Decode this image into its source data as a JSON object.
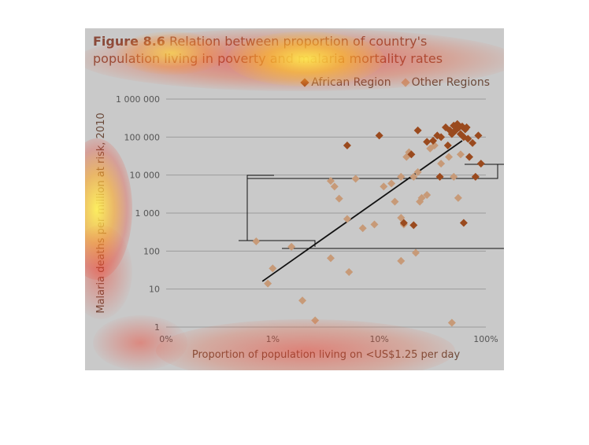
{
  "figure": {
    "number": "Figure 8.6",
    "title": "Relation between proportion of country's population living in poverty and malaria mortality rates"
  },
  "colors": {
    "african": "#9a4a1e",
    "other": "#c79a78",
    "trend": "#111111",
    "panel": "#c9c9c9",
    "grid": "#9c9c9c"
  },
  "chart_data": {
    "type": "scatter",
    "xlabel": "Proportion of population living on <US$1.25 per day",
    "ylabel": "Malaria deaths per million at risk, 2010",
    "x_scale": "log",
    "y_scale": "log",
    "xlim": [
      0.1,
      100
    ],
    "ylim": [
      1,
      1000000
    ],
    "x_ticks": [
      {
        "value": 0.1,
        "label": "0%"
      },
      {
        "value": 1,
        "label": "1%"
      },
      {
        "value": 10,
        "label": "10%"
      },
      {
        "value": 100,
        "label": "100%"
      }
    ],
    "y_ticks": [
      {
        "value": 1,
        "label": "1"
      },
      {
        "value": 10,
        "label": "10"
      },
      {
        "value": 100,
        "label": "100"
      },
      {
        "value": 1000,
        "label": "1 000"
      },
      {
        "value": 10000,
        "label": "10 000"
      },
      {
        "value": 100000,
        "label": "100 000"
      },
      {
        "value": 1000000,
        "label": "1 000 000"
      }
    ],
    "grid": true,
    "legend_position": "top-right",
    "series": [
      {
        "name": "African Region",
        "color": "#9a4a1e",
        "points": [
          [
            5,
            60000
          ],
          [
            10,
            110000
          ],
          [
            20,
            35000
          ],
          [
            23,
            150000
          ],
          [
            28,
            75000
          ],
          [
            32,
            80000
          ],
          [
            35,
            110000
          ],
          [
            38,
            100000
          ],
          [
            42,
            180000
          ],
          [
            44,
            60000
          ],
          [
            46,
            150000
          ],
          [
            48,
            120000
          ],
          [
            50,
            200000
          ],
          [
            52,
            150000
          ],
          [
            54,
            220000
          ],
          [
            56,
            180000
          ],
          [
            58,
            120000
          ],
          [
            60,
            190000
          ],
          [
            62,
            100000
          ],
          [
            64,
            160000
          ],
          [
            66,
            180000
          ],
          [
            68,
            90000
          ],
          [
            70,
            30000
          ],
          [
            75,
            70000
          ],
          [
            80,
            9000
          ],
          [
            85,
            110000
          ],
          [
            90,
            20000
          ],
          [
            62,
            550
          ],
          [
            37,
            9000
          ],
          [
            17,
            550
          ],
          [
            21,
            480
          ]
        ]
      },
      {
        "name": "Other Regions",
        "color": "#c79a78",
        "points": [
          [
            0.7,
            180
          ],
          [
            0.9,
            14
          ],
          [
            1.0,
            35
          ],
          [
            1.5,
            130
          ],
          [
            1.9,
            5
          ],
          [
            2.5,
            1.5
          ],
          [
            3.5,
            7000
          ],
          [
            3.5,
            65
          ],
          [
            3.8,
            5000
          ],
          [
            4.2,
            2400
          ],
          [
            5.0,
            700
          ],
          [
            5.2,
            28
          ],
          [
            6.0,
            8000
          ],
          [
            7.0,
            400
          ],
          [
            9.0,
            500
          ],
          [
            11,
            5000
          ],
          [
            13,
            6000
          ],
          [
            14,
            2000
          ],
          [
            16,
            9000
          ],
          [
            16,
            750
          ],
          [
            16,
            55
          ],
          [
            17,
            500
          ],
          [
            18,
            30000
          ],
          [
            19,
            40000
          ],
          [
            21,
            9000
          ],
          [
            22,
            90
          ],
          [
            23,
            12000
          ],
          [
            24,
            2000
          ],
          [
            25,
            2500
          ],
          [
            28,
            3000
          ],
          [
            30,
            50000
          ],
          [
            33,
            60000
          ],
          [
            38,
            20000
          ],
          [
            45,
            30000
          ],
          [
            48,
            1.3
          ],
          [
            50,
            9000
          ],
          [
            55,
            2500
          ],
          [
            58,
            35000
          ]
        ]
      }
    ],
    "trendline": {
      "from": [
        0.8,
        16
      ],
      "to": [
        60,
        80000
      ]
    }
  }
}
